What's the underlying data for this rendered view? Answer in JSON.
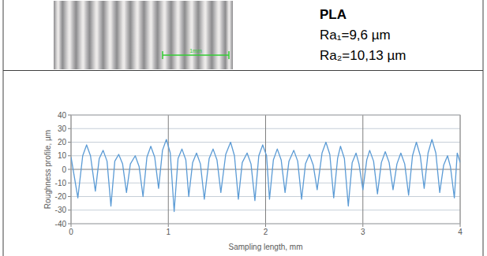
{
  "figure": {
    "material": "PLA",
    "roughness": [
      "Ra₁=9,6 µm",
      "Ra₂=10,13 µm"
    ],
    "scale_bar": "1mm"
  },
  "chart_data": {
    "type": "line",
    "color": "#5b9bd5",
    "grid": true,
    "x_label": "Sampling length, mm",
    "y_label": "Roughness profile, µm",
    "xlim": [
      0,
      4
    ],
    "xticks": [
      0,
      1,
      2,
      3,
      4
    ],
    "ylim": [
      -40,
      40
    ],
    "yticks": [
      -40,
      -30,
      -20,
      -10,
      0,
      10,
      20,
      30,
      40
    ],
    "x": [
      0,
      0.07,
      0.12,
      0.16,
      0.2,
      0.25,
      0.29,
      0.33,
      0.37,
      0.41,
      0.45,
      0.49,
      0.53,
      0.57,
      0.61,
      0.66,
      0.7,
      0.74,
      0.78,
      0.82,
      0.86,
      0.9,
      0.94,
      0.98,
      1.02,
      1.06,
      1.1,
      1.14,
      1.18,
      1.21,
      1.25,
      1.29,
      1.33,
      1.37,
      1.42,
      1.46,
      1.5,
      1.54,
      1.59,
      1.64,
      1.68,
      1.72,
      1.76,
      1.81,
      1.85,
      1.89,
      1.93,
      1.97,
      2.01,
      2.04,
      2.08,
      2.12,
      2.16,
      2.2,
      2.24,
      2.29,
      2.33,
      2.37,
      2.41,
      2.45,
      2.49,
      2.53,
      2.58,
      2.62,
      2.66,
      2.7,
      2.74,
      2.77,
      2.81,
      2.85,
      2.89,
      2.93,
      2.96,
      3.0,
      3.04,
      3.07,
      3.11,
      3.15,
      3.19,
      3.23,
      3.27,
      3.31,
      3.35,
      3.39,
      3.43,
      3.47,
      3.51,
      3.55,
      3.59,
      3.63,
      3.67,
      3.71,
      3.75,
      3.79,
      3.83,
      3.87,
      3.9,
      3.94,
      3.97,
      4.0
    ],
    "values": [
      9,
      -21,
      10,
      18,
      10,
      -16,
      8,
      14,
      6,
      -27,
      6,
      11,
      4,
      -17,
      4,
      10,
      2,
      -20,
      9,
      17,
      9,
      -14,
      14,
      22,
      12,
      -31,
      8,
      15,
      7,
      -20,
      5,
      12,
      4,
      -22,
      8,
      15,
      7,
      -17,
      11,
      20,
      10,
      -22,
      5,
      12,
      4,
      -23,
      10,
      18,
      10,
      -22,
      7,
      15,
      7,
      -17,
      6,
      14,
      6,
      -22,
      4,
      11,
      3,
      -15,
      12,
      20,
      11,
      -21,
      8,
      17,
      8,
      -27,
      5,
      12,
      4,
      -15,
      7,
      14,
      6,
      -18,
      5,
      13,
      5,
      -15,
      4,
      12,
      4,
      -19,
      10,
      20,
      10,
      -14,
      12,
      22,
      12,
      -17,
      3,
      10,
      2,
      -21,
      12,
      5
    ]
  }
}
